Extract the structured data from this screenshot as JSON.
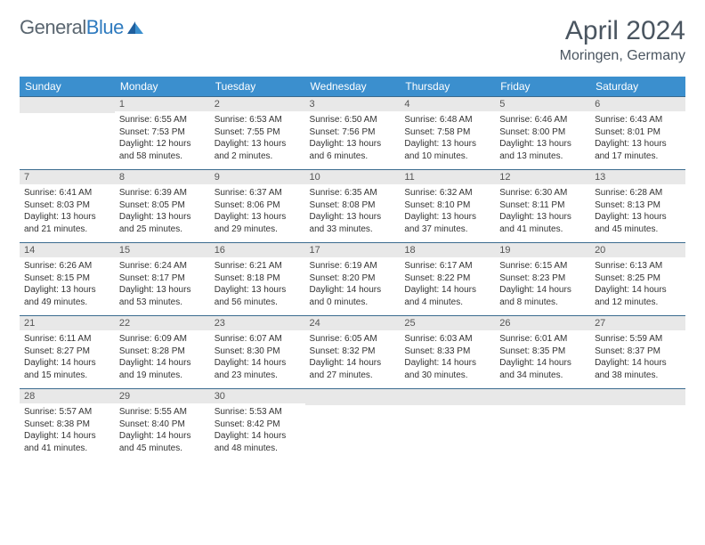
{
  "brand": {
    "name_gray": "General",
    "name_blue": "Blue"
  },
  "title": "April 2024",
  "location": "Moringen, Germany",
  "colors": {
    "header_bg": "#3b8fce",
    "header_text": "#ffffff",
    "row_border": "#3b6b8f",
    "daynum_bg": "#e8e8e8",
    "text": "#333333",
    "title_text": "#4a5560",
    "logo_gray": "#5a6670",
    "logo_blue": "#2f7bbf"
  },
  "weekdays": [
    "Sunday",
    "Monday",
    "Tuesday",
    "Wednesday",
    "Thursday",
    "Friday",
    "Saturday"
  ],
  "weeks": [
    [
      null,
      {
        "n": "1",
        "sr": "6:55 AM",
        "ss": "7:53 PM",
        "dl": "12 hours and 58 minutes."
      },
      {
        "n": "2",
        "sr": "6:53 AM",
        "ss": "7:55 PM",
        "dl": "13 hours and 2 minutes."
      },
      {
        "n": "3",
        "sr": "6:50 AM",
        "ss": "7:56 PM",
        "dl": "13 hours and 6 minutes."
      },
      {
        "n": "4",
        "sr": "6:48 AM",
        "ss": "7:58 PM",
        "dl": "13 hours and 10 minutes."
      },
      {
        "n": "5",
        "sr": "6:46 AM",
        "ss": "8:00 PM",
        "dl": "13 hours and 13 minutes."
      },
      {
        "n": "6",
        "sr": "6:43 AM",
        "ss": "8:01 PM",
        "dl": "13 hours and 17 minutes."
      }
    ],
    [
      {
        "n": "7",
        "sr": "6:41 AM",
        "ss": "8:03 PM",
        "dl": "13 hours and 21 minutes."
      },
      {
        "n": "8",
        "sr": "6:39 AM",
        "ss": "8:05 PM",
        "dl": "13 hours and 25 minutes."
      },
      {
        "n": "9",
        "sr": "6:37 AM",
        "ss": "8:06 PM",
        "dl": "13 hours and 29 minutes."
      },
      {
        "n": "10",
        "sr": "6:35 AM",
        "ss": "8:08 PM",
        "dl": "13 hours and 33 minutes."
      },
      {
        "n": "11",
        "sr": "6:32 AM",
        "ss": "8:10 PM",
        "dl": "13 hours and 37 minutes."
      },
      {
        "n": "12",
        "sr": "6:30 AM",
        "ss": "8:11 PM",
        "dl": "13 hours and 41 minutes."
      },
      {
        "n": "13",
        "sr": "6:28 AM",
        "ss": "8:13 PM",
        "dl": "13 hours and 45 minutes."
      }
    ],
    [
      {
        "n": "14",
        "sr": "6:26 AM",
        "ss": "8:15 PM",
        "dl": "13 hours and 49 minutes."
      },
      {
        "n": "15",
        "sr": "6:24 AM",
        "ss": "8:17 PM",
        "dl": "13 hours and 53 minutes."
      },
      {
        "n": "16",
        "sr": "6:21 AM",
        "ss": "8:18 PM",
        "dl": "13 hours and 56 minutes."
      },
      {
        "n": "17",
        "sr": "6:19 AM",
        "ss": "8:20 PM",
        "dl": "14 hours and 0 minutes."
      },
      {
        "n": "18",
        "sr": "6:17 AM",
        "ss": "8:22 PM",
        "dl": "14 hours and 4 minutes."
      },
      {
        "n": "19",
        "sr": "6:15 AM",
        "ss": "8:23 PM",
        "dl": "14 hours and 8 minutes."
      },
      {
        "n": "20",
        "sr": "6:13 AM",
        "ss": "8:25 PM",
        "dl": "14 hours and 12 minutes."
      }
    ],
    [
      {
        "n": "21",
        "sr": "6:11 AM",
        "ss": "8:27 PM",
        "dl": "14 hours and 15 minutes."
      },
      {
        "n": "22",
        "sr": "6:09 AM",
        "ss": "8:28 PM",
        "dl": "14 hours and 19 minutes."
      },
      {
        "n": "23",
        "sr": "6:07 AM",
        "ss": "8:30 PM",
        "dl": "14 hours and 23 minutes."
      },
      {
        "n": "24",
        "sr": "6:05 AM",
        "ss": "8:32 PM",
        "dl": "14 hours and 27 minutes."
      },
      {
        "n": "25",
        "sr": "6:03 AM",
        "ss": "8:33 PM",
        "dl": "14 hours and 30 minutes."
      },
      {
        "n": "26",
        "sr": "6:01 AM",
        "ss": "8:35 PM",
        "dl": "14 hours and 34 minutes."
      },
      {
        "n": "27",
        "sr": "5:59 AM",
        "ss": "8:37 PM",
        "dl": "14 hours and 38 minutes."
      }
    ],
    [
      {
        "n": "28",
        "sr": "5:57 AM",
        "ss": "8:38 PM",
        "dl": "14 hours and 41 minutes."
      },
      {
        "n": "29",
        "sr": "5:55 AM",
        "ss": "8:40 PM",
        "dl": "14 hours and 45 minutes."
      },
      {
        "n": "30",
        "sr": "5:53 AM",
        "ss": "8:42 PM",
        "dl": "14 hours and 48 minutes."
      },
      null,
      null,
      null,
      null
    ]
  ],
  "labels": {
    "sunrise": "Sunrise:",
    "sunset": "Sunset:",
    "daylight": "Daylight:"
  }
}
